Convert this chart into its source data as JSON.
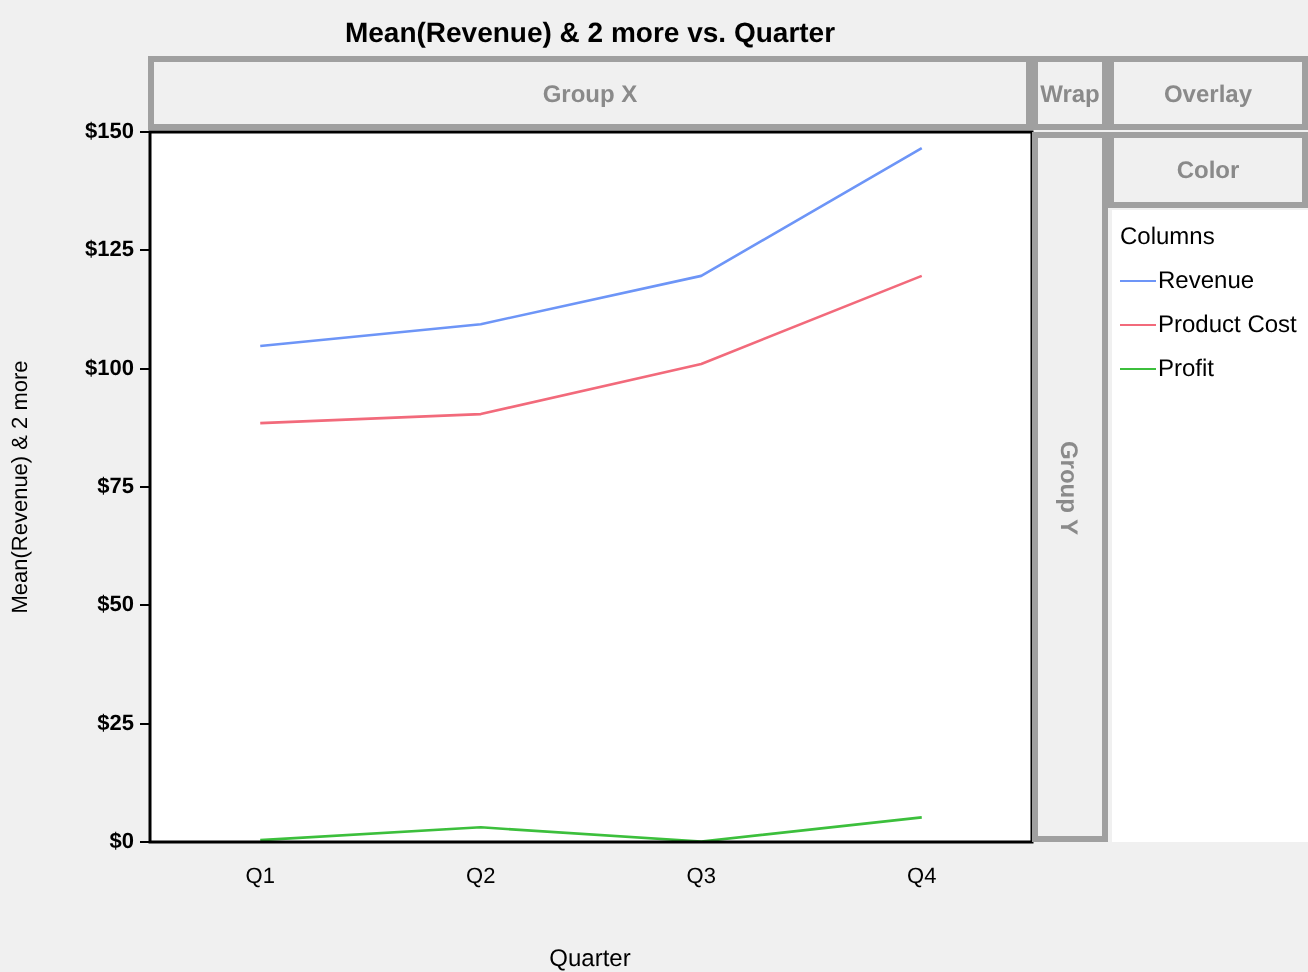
{
  "chart_data": {
    "type": "line",
    "title": "Mean(Revenue) & 2 more vs. Quarter",
    "xlabel": "Quarter",
    "ylabel": "Mean(Revenue) & 2 more",
    "legend_title": "Columns",
    "legend": "right",
    "categories": [
      "Q1",
      "Q2",
      "Q3",
      "Q4"
    ],
    "series": [
      {
        "name": "Revenue",
        "color": "#6d95f7",
        "values": [
          104.8,
          109.4,
          119.6,
          146.6
        ]
      },
      {
        "name": "Product Cost",
        "color": "#f26a7b",
        "values": [
          88.5,
          90.4,
          101,
          119.6
        ]
      },
      {
        "name": "Profit",
        "color": "#3cbf3c",
        "values": [
          0.4,
          3.1,
          0.1,
          5.2
        ]
      }
    ],
    "ylim": [
      0,
      150
    ],
    "yticks": [
      {
        "value": 0,
        "label": "$0"
      },
      {
        "value": 25,
        "label": "$25"
      },
      {
        "value": 50,
        "label": "$50"
      },
      {
        "value": 75,
        "label": "$75"
      },
      {
        "value": 100,
        "label": "$100"
      },
      {
        "value": 125,
        "label": "$125"
      },
      {
        "value": 150,
        "label": "$150"
      }
    ],
    "marker": "none",
    "line_style": "solid",
    "annotations": [
      "Group X",
      "Wrap",
      "Overlay",
      "Color",
      "Group Y"
    ]
  }
}
